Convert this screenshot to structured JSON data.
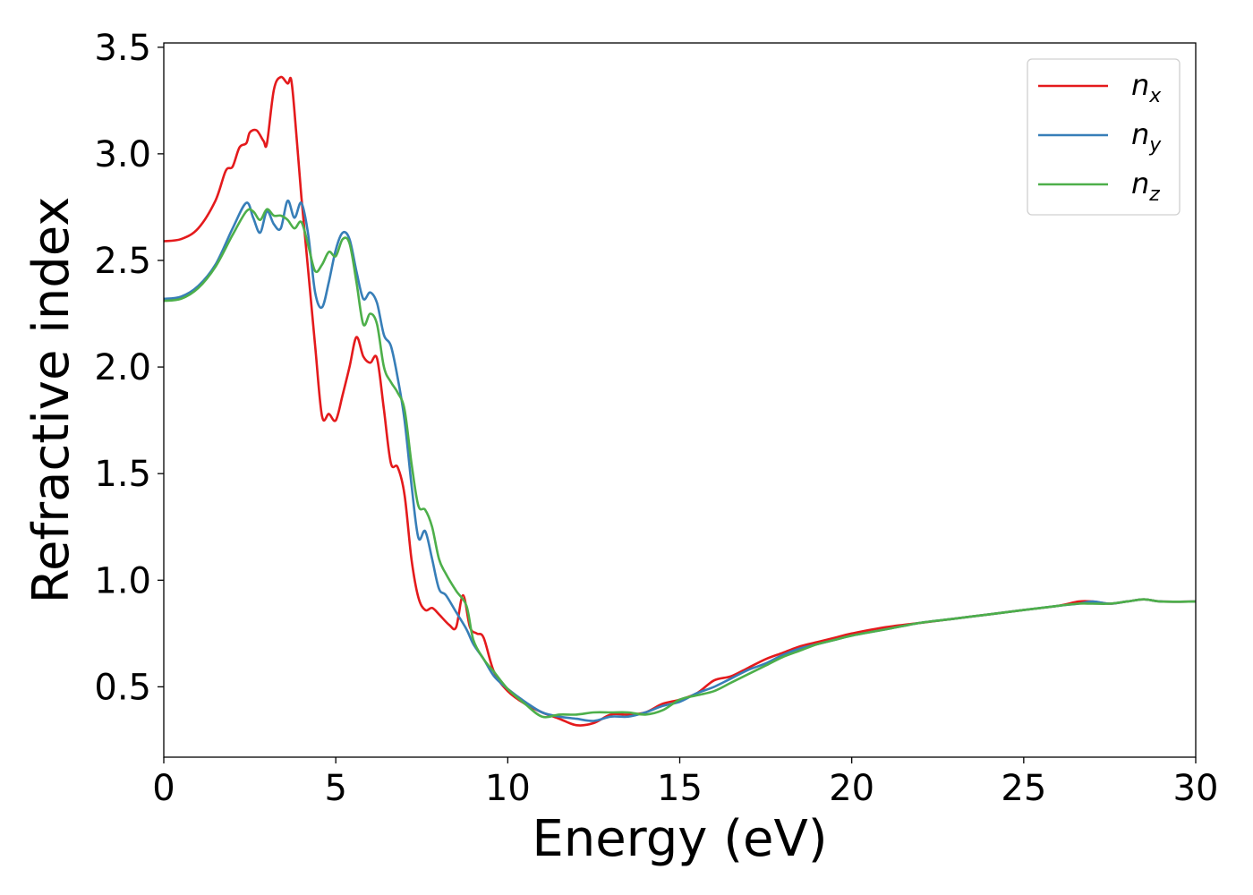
{
  "chart_data": {
    "type": "line",
    "xlabel": "Energy (eV)",
    "ylabel": "Refractive index",
    "xlim": [
      0,
      30
    ],
    "ylim": [
      0.17,
      3.52
    ],
    "x_ticks": [
      "0",
      "5",
      "10",
      "15",
      "20",
      "25",
      "30"
    ],
    "y_ticks": [
      "0.5",
      "1.0",
      "1.5",
      "2.0",
      "2.5",
      "3.0",
      "3.5"
    ],
    "grid": false,
    "legend_position": "top-right",
    "series": [
      {
        "name": "n",
        "subscript": "x",
        "color": "#e41a1c",
        "points": [
          [
            0,
            2.59
          ],
          [
            0.5,
            2.6
          ],
          [
            1.0,
            2.65
          ],
          [
            1.5,
            2.78
          ],
          [
            1.8,
            2.92
          ],
          [
            2.0,
            2.94
          ],
          [
            2.2,
            3.03
          ],
          [
            2.4,
            3.05
          ],
          [
            2.5,
            3.1
          ],
          [
            2.7,
            3.11
          ],
          [
            2.9,
            3.06
          ],
          [
            3.0,
            3.05
          ],
          [
            3.2,
            3.3
          ],
          [
            3.4,
            3.36
          ],
          [
            3.6,
            3.33
          ],
          [
            3.7,
            3.35
          ],
          [
            3.8,
            3.2
          ],
          [
            4.0,
            2.8
          ],
          [
            4.2,
            2.45
          ],
          [
            4.4,
            2.1
          ],
          [
            4.6,
            1.77
          ],
          [
            4.8,
            1.78
          ],
          [
            5.0,
            1.75
          ],
          [
            5.2,
            1.87
          ],
          [
            5.4,
            2.0
          ],
          [
            5.6,
            2.14
          ],
          [
            5.8,
            2.05
          ],
          [
            6.0,
            2.02
          ],
          [
            6.2,
            2.04
          ],
          [
            6.4,
            1.8
          ],
          [
            6.6,
            1.55
          ],
          [
            6.8,
            1.53
          ],
          [
            7.0,
            1.4
          ],
          [
            7.2,
            1.1
          ],
          [
            7.4,
            0.92
          ],
          [
            7.6,
            0.86
          ],
          [
            7.8,
            0.87
          ],
          [
            8.0,
            0.84
          ],
          [
            8.3,
            0.79
          ],
          [
            8.5,
            0.78
          ],
          [
            8.7,
            0.93
          ],
          [
            8.9,
            0.78
          ],
          [
            9.1,
            0.75
          ],
          [
            9.3,
            0.73
          ],
          [
            9.6,
            0.57
          ],
          [
            10.0,
            0.48
          ],
          [
            10.5,
            0.42
          ],
          [
            11.0,
            0.38
          ],
          [
            11.5,
            0.35
          ],
          [
            12.0,
            0.32
          ],
          [
            12.5,
            0.33
          ],
          [
            13.0,
            0.37
          ],
          [
            13.5,
            0.37
          ],
          [
            14.0,
            0.38
          ],
          [
            14.5,
            0.42
          ],
          [
            15.0,
            0.44
          ],
          [
            15.5,
            0.47
          ],
          [
            16.0,
            0.53
          ],
          [
            16.5,
            0.55
          ],
          [
            17.0,
            0.59
          ],
          [
            17.5,
            0.63
          ],
          [
            18.0,
            0.66
          ],
          [
            18.5,
            0.69
          ],
          [
            19.0,
            0.71
          ],
          [
            19.5,
            0.73
          ],
          [
            20.0,
            0.75
          ],
          [
            21.0,
            0.78
          ],
          [
            22.0,
            0.8
          ],
          [
            23.0,
            0.82
          ],
          [
            24.0,
            0.84
          ],
          [
            25.0,
            0.86
          ],
          [
            26.0,
            0.88
          ],
          [
            26.6,
            0.9
          ],
          [
            27.0,
            0.9
          ],
          [
            27.5,
            0.89
          ],
          [
            28.0,
            0.9
          ],
          [
            28.5,
            0.91
          ],
          [
            29.0,
            0.9
          ],
          [
            30.0,
            0.9
          ]
        ]
      },
      {
        "name": "n",
        "subscript": "y",
        "color": "#377eb8",
        "points": [
          [
            0,
            2.32
          ],
          [
            0.5,
            2.33
          ],
          [
            1.0,
            2.38
          ],
          [
            1.5,
            2.48
          ],
          [
            2.0,
            2.65
          ],
          [
            2.4,
            2.77
          ],
          [
            2.6,
            2.7
          ],
          [
            2.8,
            2.63
          ],
          [
            3.0,
            2.73
          ],
          [
            3.2,
            2.67
          ],
          [
            3.4,
            2.65
          ],
          [
            3.6,
            2.78
          ],
          [
            3.8,
            2.7
          ],
          [
            4.0,
            2.77
          ],
          [
            4.2,
            2.62
          ],
          [
            4.4,
            2.35
          ],
          [
            4.6,
            2.28
          ],
          [
            4.8,
            2.4
          ],
          [
            5.0,
            2.55
          ],
          [
            5.2,
            2.63
          ],
          [
            5.4,
            2.6
          ],
          [
            5.6,
            2.45
          ],
          [
            5.8,
            2.32
          ],
          [
            6.0,
            2.35
          ],
          [
            6.2,
            2.3
          ],
          [
            6.4,
            2.15
          ],
          [
            6.6,
            2.1
          ],
          [
            6.8,
            1.95
          ],
          [
            7.0,
            1.75
          ],
          [
            7.2,
            1.45
          ],
          [
            7.4,
            1.2
          ],
          [
            7.6,
            1.23
          ],
          [
            7.8,
            1.1
          ],
          [
            8.0,
            0.96
          ],
          [
            8.2,
            0.93
          ],
          [
            8.5,
            0.85
          ],
          [
            8.8,
            0.77
          ],
          [
            9.0,
            0.7
          ],
          [
            9.3,
            0.63
          ],
          [
            9.6,
            0.55
          ],
          [
            10.0,
            0.49
          ],
          [
            10.5,
            0.43
          ],
          [
            11.0,
            0.38
          ],
          [
            11.5,
            0.36
          ],
          [
            12.0,
            0.35
          ],
          [
            12.5,
            0.34
          ],
          [
            13.0,
            0.36
          ],
          [
            13.5,
            0.36
          ],
          [
            14.0,
            0.38
          ],
          [
            14.5,
            0.41
          ],
          [
            15.0,
            0.43
          ],
          [
            15.5,
            0.47
          ],
          [
            16.0,
            0.5
          ],
          [
            16.5,
            0.54
          ],
          [
            17.0,
            0.58
          ],
          [
            17.5,
            0.61
          ],
          [
            18.0,
            0.65
          ],
          [
            18.5,
            0.68
          ],
          [
            19.0,
            0.7
          ],
          [
            19.5,
            0.72
          ],
          [
            20.0,
            0.74
          ],
          [
            21.0,
            0.77
          ],
          [
            22.0,
            0.8
          ],
          [
            23.0,
            0.82
          ],
          [
            24.0,
            0.84
          ],
          [
            25.0,
            0.86
          ],
          [
            26.0,
            0.88
          ],
          [
            26.6,
            0.89
          ],
          [
            27.0,
            0.9
          ],
          [
            27.5,
            0.89
          ],
          [
            28.0,
            0.9
          ],
          [
            28.5,
            0.91
          ],
          [
            29.0,
            0.9
          ],
          [
            30.0,
            0.9
          ]
        ]
      },
      {
        "name": "n",
        "subscript": "z",
        "color": "#4daf4a",
        "points": [
          [
            0,
            2.31
          ],
          [
            0.5,
            2.32
          ],
          [
            1.0,
            2.37
          ],
          [
            1.5,
            2.47
          ],
          [
            2.0,
            2.62
          ],
          [
            2.4,
            2.73
          ],
          [
            2.6,
            2.73
          ],
          [
            2.8,
            2.69
          ],
          [
            3.0,
            2.74
          ],
          [
            3.2,
            2.71
          ],
          [
            3.4,
            2.71
          ],
          [
            3.6,
            2.69
          ],
          [
            3.8,
            2.65
          ],
          [
            4.0,
            2.68
          ],
          [
            4.2,
            2.57
          ],
          [
            4.4,
            2.45
          ],
          [
            4.6,
            2.48
          ],
          [
            4.8,
            2.54
          ],
          [
            5.0,
            2.52
          ],
          [
            5.2,
            2.6
          ],
          [
            5.4,
            2.58
          ],
          [
            5.6,
            2.4
          ],
          [
            5.8,
            2.2
          ],
          [
            6.0,
            2.25
          ],
          [
            6.2,
            2.2
          ],
          [
            6.4,
            2.0
          ],
          [
            6.6,
            1.93
          ],
          [
            6.8,
            1.88
          ],
          [
            7.0,
            1.8
          ],
          [
            7.2,
            1.55
          ],
          [
            7.4,
            1.35
          ],
          [
            7.6,
            1.33
          ],
          [
            7.8,
            1.25
          ],
          [
            8.0,
            1.1
          ],
          [
            8.2,
            1.03
          ],
          [
            8.5,
            0.95
          ],
          [
            8.8,
            0.88
          ],
          [
            9.0,
            0.72
          ],
          [
            9.3,
            0.63
          ],
          [
            9.6,
            0.57
          ],
          [
            10.0,
            0.49
          ],
          [
            10.5,
            0.42
          ],
          [
            11.0,
            0.36
          ],
          [
            11.5,
            0.37
          ],
          [
            12.0,
            0.37
          ],
          [
            12.5,
            0.38
          ],
          [
            13.0,
            0.38
          ],
          [
            13.5,
            0.38
          ],
          [
            14.0,
            0.37
          ],
          [
            14.5,
            0.39
          ],
          [
            15.0,
            0.44
          ],
          [
            15.5,
            0.46
          ],
          [
            16.0,
            0.48
          ],
          [
            16.5,
            0.52
          ],
          [
            17.0,
            0.56
          ],
          [
            17.5,
            0.6
          ],
          [
            18.0,
            0.64
          ],
          [
            18.5,
            0.67
          ],
          [
            19.0,
            0.7
          ],
          [
            19.5,
            0.72
          ],
          [
            20.0,
            0.74
          ],
          [
            21.0,
            0.77
          ],
          [
            22.0,
            0.8
          ],
          [
            23.0,
            0.82
          ],
          [
            24.0,
            0.84
          ],
          [
            25.0,
            0.86
          ],
          [
            26.0,
            0.88
          ],
          [
            26.6,
            0.89
          ],
          [
            27.0,
            0.89
          ],
          [
            27.5,
            0.89
          ],
          [
            28.0,
            0.9
          ],
          [
            28.5,
            0.91
          ],
          [
            29.0,
            0.9
          ],
          [
            30.0,
            0.9
          ]
        ]
      }
    ]
  }
}
